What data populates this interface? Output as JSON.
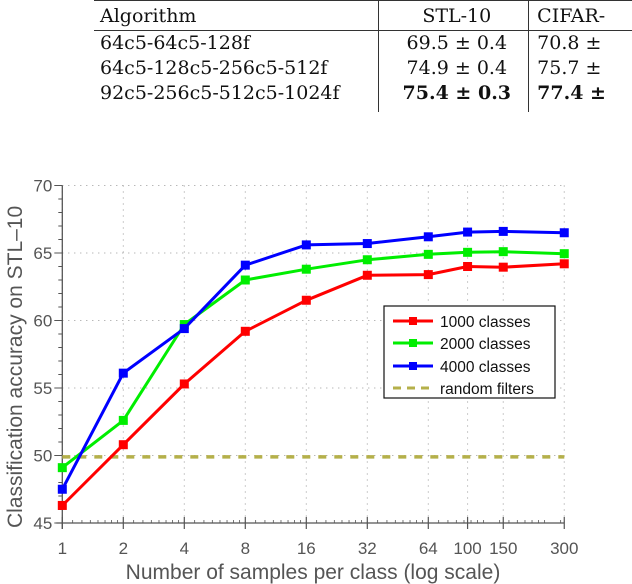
{
  "table": {
    "headers": [
      "Algorithm",
      "STL-10",
      "CIFAR-"
    ],
    "rows": [
      {
        "algorithm": "64c5-64c5-128f",
        "stl10": "69.5 ± 0.4",
        "cifar": "70.8 ±",
        "bold": false
      },
      {
        "algorithm": "64c5-128c5-256c5-512f",
        "stl10": "74.9 ± 0.4",
        "cifar": "75.7 ±",
        "bold": false
      },
      {
        "algorithm": "92c5-256c5-512c5-1024f",
        "stl10": "75.4 ± 0.3",
        "cifar": "77.4 ±",
        "bold": true
      }
    ]
  },
  "chart_data": {
    "type": "line",
    "title": "",
    "xlabel": "Number of samples per class (log scale)",
    "ylabel": "Classification accuracy on STL–10",
    "x": [
      1,
      2,
      4,
      8,
      16,
      32,
      64,
      100,
      150,
      300
    ],
    "x_tick_labels": [
      "1",
      "2",
      "4",
      "8",
      "16",
      "32",
      "64",
      "100",
      "150",
      "300"
    ],
    "x_scale": "log",
    "ylim": [
      45,
      70
    ],
    "y_ticks": [
      45,
      50,
      55,
      60,
      65,
      70
    ],
    "grid": true,
    "legend_position": "center-right",
    "series": [
      {
        "name": "1000 classes",
        "color": "#ff0000",
        "marker": "square",
        "style": "solid",
        "values": [
          46.3,
          50.8,
          55.3,
          59.2,
          61.5,
          63.35,
          63.4,
          64.0,
          63.95,
          64.2
        ]
      },
      {
        "name": "2000 classes",
        "color": "#00ee00",
        "marker": "square",
        "style": "solid",
        "values": [
          49.1,
          52.6,
          59.7,
          63.0,
          63.8,
          64.5,
          64.9,
          65.05,
          65.1,
          64.95
        ]
      },
      {
        "name": "4000 classes",
        "color": "#0000ff",
        "marker": "square",
        "style": "solid",
        "values": [
          47.5,
          56.1,
          59.4,
          64.1,
          65.6,
          65.7,
          66.2,
          66.55,
          66.6,
          66.5
        ]
      },
      {
        "name": "random filters",
        "color": "#b5b04a",
        "marker": "none",
        "style": "dashed",
        "values": [
          49.9,
          49.9,
          49.9,
          49.9,
          49.9,
          49.9,
          49.9,
          49.9,
          49.9,
          49.9
        ]
      }
    ]
  }
}
